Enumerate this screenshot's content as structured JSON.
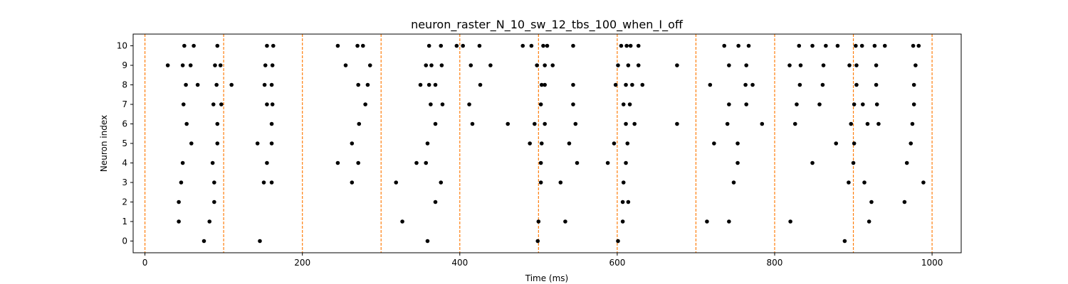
{
  "chart_data": {
    "type": "scatter",
    "title": "neuron_raster_N_10_sw_12_tbs_100_when_I_off",
    "xlabel": "Time (ms)",
    "ylabel": "Neuron index",
    "xlim": [
      -15,
      1037
    ],
    "ylim": [
      -0.6,
      10.6
    ],
    "xticks": [
      0,
      200,
      400,
      600,
      800,
      1000
    ],
    "yticks": [
      0,
      1,
      2,
      3,
      4,
      5,
      6,
      7,
      8,
      9,
      10
    ],
    "vlines": [
      0,
      100,
      200,
      300,
      400,
      500,
      600,
      700,
      800,
      900,
      1000
    ],
    "vline_color": "#ff7f0e",
    "marker_color": "#000000",
    "grid": false,
    "series": [
      {
        "points": [
          [
            75,
            0
          ],
          [
            146,
            0
          ],
          [
            359,
            0
          ],
          [
            499,
            0
          ],
          [
            601,
            0
          ],
          [
            889,
            0
          ],
          [
            43,
            1
          ],
          [
            82,
            1
          ],
          [
            327,
            1
          ],
          [
            500,
            1
          ],
          [
            534,
            1
          ],
          [
            607,
            1
          ],
          [
            714,
            1
          ],
          [
            742,
            1
          ],
          [
            820,
            1
          ],
          [
            920,
            1
          ],
          [
            43,
            2
          ],
          [
            88,
            2
          ],
          [
            369,
            2
          ],
          [
            607,
            2
          ],
          [
            614,
            2
          ],
          [
            923,
            2
          ],
          [
            965,
            2
          ],
          [
            46,
            3
          ],
          [
            88,
            3
          ],
          [
            151,
            3
          ],
          [
            161,
            3
          ],
          [
            263,
            3
          ],
          [
            319,
            3
          ],
          [
            376,
            3
          ],
          [
            503,
            3
          ],
          [
            528,
            3
          ],
          [
            608,
            3
          ],
          [
            748,
            3
          ],
          [
            894,
            3
          ],
          [
            914,
            3
          ],
          [
            989,
            3
          ],
          [
            48,
            4
          ],
          [
            86,
            4
          ],
          [
            155,
            4
          ],
          [
            245,
            4
          ],
          [
            271,
            4
          ],
          [
            345,
            4
          ],
          [
            357,
            4
          ],
          [
            503,
            4
          ],
          [
            549,
            4
          ],
          [
            588,
            4
          ],
          [
            611,
            4
          ],
          [
            753,
            4
          ],
          [
            848,
            4
          ],
          [
            900,
            4
          ],
          [
            968,
            4
          ],
          [
            59,
            5
          ],
          [
            92,
            5
          ],
          [
            143,
            5
          ],
          [
            161,
            5
          ],
          [
            263,
            5
          ],
          [
            359,
            5
          ],
          [
            489,
            5
          ],
          [
            504,
            5
          ],
          [
            539,
            5
          ],
          [
            596,
            5
          ],
          [
            613,
            5
          ],
          [
            723,
            5
          ],
          [
            753,
            5
          ],
          [
            878,
            5
          ],
          [
            901,
            5
          ],
          [
            973,
            5
          ],
          [
            53,
            6
          ],
          [
            92,
            6
          ],
          [
            161,
            6
          ],
          [
            272,
            6
          ],
          [
            369,
            6
          ],
          [
            416,
            6
          ],
          [
            461,
            6
          ],
          [
            495,
            6
          ],
          [
            508,
            6
          ],
          [
            547,
            6
          ],
          [
            611,
            6
          ],
          [
            622,
            6
          ],
          [
            676,
            6
          ],
          [
            740,
            6
          ],
          [
            784,
            6
          ],
          [
            826,
            6
          ],
          [
            897,
            6
          ],
          [
            918,
            6
          ],
          [
            932,
            6
          ],
          [
            975,
            6
          ],
          [
            49,
            7
          ],
          [
            87,
            7
          ],
          [
            97,
            7
          ],
          [
            155,
            7
          ],
          [
            162,
            7
          ],
          [
            280,
            7
          ],
          [
            363,
            7
          ],
          [
            378,
            7
          ],
          [
            412,
            7
          ],
          [
            503,
            7
          ],
          [
            544,
            7
          ],
          [
            608,
            7
          ],
          [
            616,
            7
          ],
          [
            742,
            7
          ],
          [
            764,
            7
          ],
          [
            828,
            7
          ],
          [
            857,
            7
          ],
          [
            901,
            7
          ],
          [
            912,
            7
          ],
          [
            930,
            7
          ],
          [
            977,
            7
          ],
          [
            52,
            8
          ],
          [
            67,
            8
          ],
          [
            91,
            8
          ],
          [
            110,
            8
          ],
          [
            152,
            8
          ],
          [
            161,
            8
          ],
          [
            271,
            8
          ],
          [
            283,
            8
          ],
          [
            350,
            8
          ],
          [
            361,
            8
          ],
          [
            369,
            8
          ],
          [
            426,
            8
          ],
          [
            504,
            8
          ],
          [
            508,
            8
          ],
          [
            544,
            8
          ],
          [
            598,
            8
          ],
          [
            611,
            8
          ],
          [
            619,
            8
          ],
          [
            632,
            8
          ],
          [
            718,
            8
          ],
          [
            763,
            8
          ],
          [
            772,
            8
          ],
          [
            832,
            8
          ],
          [
            861,
            8
          ],
          [
            904,
            8
          ],
          [
            929,
            8
          ],
          [
            977,
            8
          ],
          [
            29,
            9
          ],
          [
            48,
            9
          ],
          [
            58,
            9
          ],
          [
            89,
            9
          ],
          [
            96,
            9
          ],
          [
            153,
            9
          ],
          [
            162,
            9
          ],
          [
            255,
            9
          ],
          [
            286,
            9
          ],
          [
            357,
            9
          ],
          [
            364,
            9
          ],
          [
            377,
            9
          ],
          [
            414,
            9
          ],
          [
            439,
            9
          ],
          [
            498,
            9
          ],
          [
            508,
            9
          ],
          [
            518,
            9
          ],
          [
            601,
            9
          ],
          [
            614,
            9
          ],
          [
            627,
            9
          ],
          [
            676,
            9
          ],
          [
            742,
            9
          ],
          [
            764,
            9
          ],
          [
            819,
            9
          ],
          [
            833,
            9
          ],
          [
            862,
            9
          ],
          [
            895,
            9
          ],
          [
            904,
            9
          ],
          [
            929,
            9
          ],
          [
            979,
            9
          ],
          [
            50,
            10
          ],
          [
            62,
            10
          ],
          [
            92,
            10
          ],
          [
            155,
            10
          ],
          [
            163,
            10
          ],
          [
            245,
            10
          ],
          [
            270,
            10
          ],
          [
            277,
            10
          ],
          [
            361,
            10
          ],
          [
            376,
            10
          ],
          [
            396,
            10
          ],
          [
            404,
            10
          ],
          [
            425,
            10
          ],
          [
            480,
            10
          ],
          [
            491,
            10
          ],
          [
            506,
            10
          ],
          [
            511,
            10
          ],
          [
            544,
            10
          ],
          [
            605,
            10
          ],
          [
            612,
            10
          ],
          [
            617,
            10
          ],
          [
            627,
            10
          ],
          [
            736,
            10
          ],
          [
            754,
            10
          ],
          [
            767,
            10
          ],
          [
            831,
            10
          ],
          [
            848,
            10
          ],
          [
            865,
            10
          ],
          [
            880,
            10
          ],
          [
            903,
            10
          ],
          [
            911,
            10
          ],
          [
            927,
            10
          ],
          [
            940,
            10
          ],
          [
            976,
            10
          ],
          [
            983,
            10
          ]
        ]
      }
    ]
  }
}
